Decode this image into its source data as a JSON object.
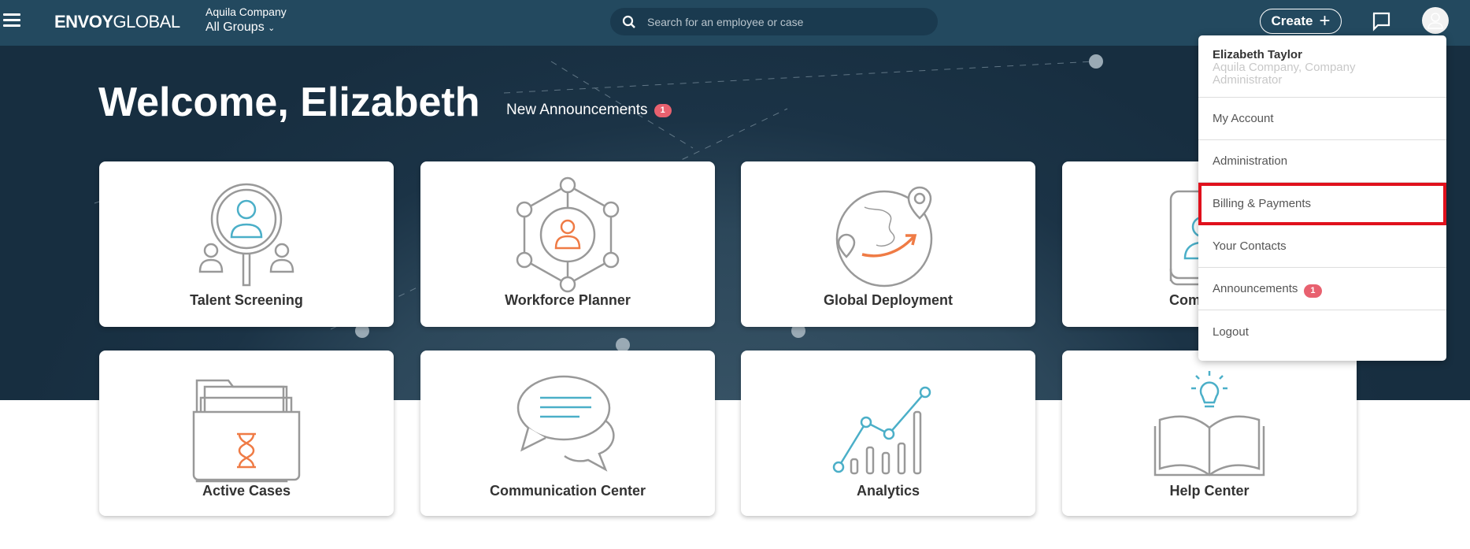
{
  "header": {
    "logo_bold": "ENVOY",
    "logo_light": "GLOBAL",
    "company": "Aquila Company",
    "groups": "All Groups",
    "search_placeholder": "Search for an employee or case",
    "create_label": "Create"
  },
  "hero": {
    "welcome": "Welcome, Elizabeth",
    "announcements_label": "New Announcements",
    "announcements_count": "1"
  },
  "cards": [
    {
      "label": "Talent Screening",
      "icon": "talent-screening-icon"
    },
    {
      "label": "Workforce Planner",
      "icon": "workforce-planner-icon"
    },
    {
      "label": "Global Deployment",
      "icon": "global-deployment-icon"
    },
    {
      "label": "Com",
      "icon": "company-icon"
    },
    {
      "label": "Active Cases",
      "icon": "active-cases-icon"
    },
    {
      "label": "Communication Center",
      "icon": "communication-icon"
    },
    {
      "label": "Analytics",
      "icon": "analytics-icon"
    },
    {
      "label": "Help Center",
      "icon": "help-center-icon"
    }
  ],
  "user_menu": {
    "name": "Elizabeth Taylor",
    "role": "Aquila Company, Company Administrator",
    "items": [
      {
        "label": "My Account"
      },
      {
        "label": "Administration"
      },
      {
        "label": "Billing & Payments",
        "highlighted": true
      },
      {
        "label": "Your Contacts"
      },
      {
        "label": "Announcements",
        "badge": "1"
      },
      {
        "label": "Logout"
      }
    ]
  },
  "colors": {
    "header": "#23495f",
    "accent_blue": "#4bafc8",
    "accent_orange": "#ef7b45",
    "badge": "#e8616f",
    "highlight": "#e0101c"
  }
}
